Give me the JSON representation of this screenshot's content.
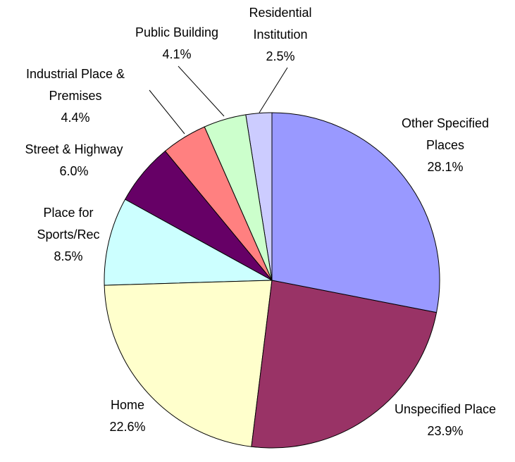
{
  "chart_data": {
    "type": "pie",
    "categories": [
      "Other Specified Places",
      "Unspecified Place",
      "Home",
      "Place for Sports/Rec",
      "Street & Highway",
      "Industrial Place & Premises",
      "Public Building",
      "Residential Institution"
    ],
    "values": [
      28.1,
      23.9,
      22.6,
      8.5,
      6.0,
      4.4,
      4.1,
      2.5
    ],
    "value_labels": [
      "28.1%",
      "23.9%",
      "22.6%",
      "8.5%",
      "6.0%",
      "4.4%",
      "4.1%",
      "2.5%"
    ],
    "colors": [
      "#9999ff",
      "#993366",
      "#ffffcc",
      "#ccffff",
      "#660066",
      "#ff8080",
      "#ccffcc",
      "#ccccff"
    ]
  }
}
